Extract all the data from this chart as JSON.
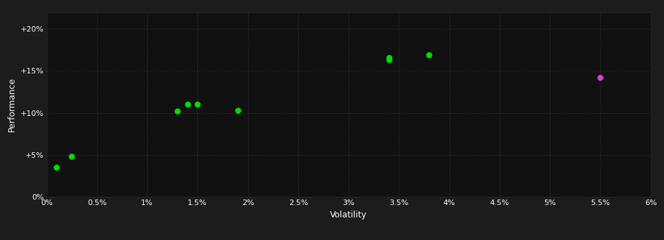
{
  "background_color": "#1c1c1c",
  "plot_bg_color": "#111111",
  "text_color": "#ffffff",
  "xlabel": "Volatility",
  "ylabel": "Performance",
  "xlim": [
    0,
    0.06
  ],
  "ylim": [
    0,
    0.22
  ],
  "xticks": [
    0.0,
    0.005,
    0.01,
    0.015,
    0.02,
    0.025,
    0.03,
    0.035,
    0.04,
    0.045,
    0.05,
    0.055,
    0.06
  ],
  "yticks": [
    0.0,
    0.05,
    0.1,
    0.15,
    0.2
  ],
  "ytick_labels": [
    "0%",
    "+5%",
    "+10%",
    "+15%",
    "+20%"
  ],
  "xtick_labels": [
    "0%",
    "0.5%",
    "1%",
    "1.5%",
    "2%",
    "2.5%",
    "3%",
    "3.5%",
    "4%",
    "4.5%",
    "5%",
    "5.5%",
    "6%"
  ],
  "green_points": [
    [
      0.001,
      0.035
    ],
    [
      0.0025,
      0.048
    ],
    [
      0.013,
      0.102
    ],
    [
      0.014,
      0.11
    ],
    [
      0.015,
      0.11
    ],
    [
      0.019,
      0.103
    ],
    [
      0.034,
      0.166
    ],
    [
      0.034,
      0.163
    ],
    [
      0.038,
      0.169
    ]
  ],
  "magenta_points": [
    [
      0.055,
      0.142
    ]
  ],
  "green_color": "#00dd00",
  "magenta_color": "#cc44cc",
  "marker_size": 40,
  "grid_color": "#3a3a3a",
  "grid_linestyle": ":",
  "grid_linewidth": 0.7,
  "xlabel_fontsize": 9,
  "ylabel_fontsize": 9,
  "tick_fontsize": 8
}
